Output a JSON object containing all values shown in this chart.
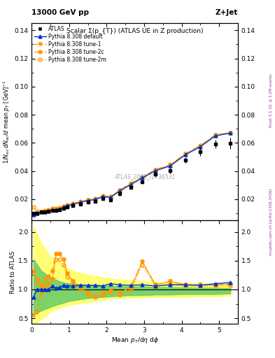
{
  "title_left": "13000 GeV pp",
  "title_right": "Z+Jet",
  "plot_title": "Scalar Σ(p_{T}) (ATLAS UE in Z production)",
  "right_label_top": "Rivet 3.1.10, ≥ 3.2M events",
  "right_label_bot": "mcplots.cern.ch [arXiv:1306.3436]",
  "watermark": "ATLAS_2019_I1736531",
  "ylabel_main": "1/N_{ev} dN_{ev}/d mean p_{T} [GeV]^{-1}",
  "ylabel_ratio": "Ratio to ATLAS",
  "xlabel": "Mean p_{T}/dη dϕ",
  "xlim": [
    0,
    5.5
  ],
  "ylim_main": [
    0.005,
    0.145
  ],
  "ylim_ratio": [
    0.4,
    2.2
  ],
  "x_data": [
    0.05,
    0.15,
    0.25,
    0.35,
    0.45,
    0.55,
    0.65,
    0.75,
    0.85,
    0.95,
    1.1,
    1.3,
    1.5,
    1.7,
    1.9,
    2.1,
    2.35,
    2.65,
    2.95,
    3.3,
    3.7,
    4.1,
    4.5,
    4.9,
    5.3
  ],
  "atlas_y": [
    0.0098,
    0.0098,
    0.0108,
    0.011,
    0.0115,
    0.0118,
    0.0122,
    0.0125,
    0.0135,
    0.0145,
    0.0155,
    0.0165,
    0.0178,
    0.0185,
    0.0205,
    0.0192,
    0.0238,
    0.0285,
    0.0325,
    0.0378,
    0.0405,
    0.0478,
    0.0535,
    0.059,
    0.0598
  ],
  "atlas_yerr": [
    0.0008,
    0.0008,
    0.0008,
    0.0008,
    0.0008,
    0.0008,
    0.0008,
    0.0008,
    0.0009,
    0.0009,
    0.0009,
    0.0009,
    0.001,
    0.001,
    0.001,
    0.001,
    0.0012,
    0.0013,
    0.0015,
    0.0018,
    0.002,
    0.002,
    0.003,
    0.003,
    0.004
  ],
  "pythia_default_y": [
    0.0088,
    0.0098,
    0.0108,
    0.011,
    0.0115,
    0.0125,
    0.0125,
    0.013,
    0.0145,
    0.0153,
    0.0164,
    0.0177,
    0.019,
    0.0198,
    0.0218,
    0.0212,
    0.0258,
    0.0305,
    0.0351,
    0.0402,
    0.0437,
    0.0516,
    0.0573,
    0.065,
    0.067
  ],
  "pythia_tune1_y": [
    0.009,
    0.0098,
    0.011,
    0.0112,
    0.0118,
    0.0128,
    0.0128,
    0.0132,
    0.0147,
    0.0155,
    0.0166,
    0.0178,
    0.0192,
    0.02,
    0.022,
    0.0215,
    0.0262,
    0.0308,
    0.0355,
    0.0406,
    0.0442,
    0.052,
    0.0578,
    0.0655,
    0.0672
  ],
  "pythia_tune2c_y": [
    0.009,
    0.01,
    0.0112,
    0.0118,
    0.0125,
    0.0135,
    0.0135,
    0.0138,
    0.0152,
    0.016,
    0.017,
    0.0182,
    0.0196,
    0.0204,
    0.0225,
    0.0218,
    0.0265,
    0.0313,
    0.0358,
    0.041,
    0.0446,
    0.0523,
    0.0582,
    0.0658,
    0.0672
  ],
  "pythia_tune2m_y": [
    0.0145,
    0.0115,
    0.0108,
    0.0112,
    0.0118,
    0.0128,
    0.013,
    0.0132,
    0.0147,
    0.0155,
    0.0165,
    0.0177,
    0.0192,
    0.02,
    0.022,
    0.0215,
    0.026,
    0.0308,
    0.0353,
    0.0404,
    0.044,
    0.0518,
    0.0578,
    0.0653,
    0.067
  ],
  "ratio_default": [
    0.87,
    1.0,
    1.0,
    1.0,
    1.0,
    1.06,
    1.02,
    1.04,
    1.07,
    1.06,
    1.06,
    1.07,
    1.07,
    1.07,
    1.06,
    1.1,
    1.08,
    1.07,
    1.08,
    1.06,
    1.08,
    1.08,
    1.07,
    1.1,
    1.12
  ],
  "ratio_tune1": [
    0.55,
    0.6,
    0.92,
    1.0,
    1.08,
    1.18,
    1.62,
    1.62,
    1.52,
    1.28,
    1.14,
    1.04,
    0.94,
    0.88,
    0.94,
    0.98,
    0.94,
    1.04,
    1.48,
    1.08,
    1.14,
    1.08,
    1.08,
    1.08,
    1.08
  ],
  "ratio_tune2c": [
    1.32,
    1.18,
    1.08,
    1.18,
    1.23,
    1.33,
    1.62,
    1.62,
    1.52,
    1.28,
    1.14,
    1.04,
    0.94,
    0.88,
    0.94,
    0.98,
    0.94,
    1.04,
    1.48,
    1.08,
    1.14,
    1.08,
    1.08,
    1.08,
    1.1
  ],
  "ratio_tune2m": [
    1.32,
    1.12,
    1.02,
    1.08,
    1.1,
    1.18,
    1.52,
    1.52,
    1.42,
    1.22,
    1.08,
    1.0,
    0.9,
    0.86,
    0.9,
    0.96,
    0.9,
    1.0,
    1.42,
    1.05,
    1.1,
    1.05,
    1.06,
    1.06,
    1.06
  ],
  "yellow_band_upper": [
    2.1,
    1.95,
    1.82,
    1.72,
    1.62,
    1.56,
    1.52,
    1.47,
    1.42,
    1.37,
    1.32,
    1.29,
    1.26,
    1.23,
    1.21,
    1.19,
    1.17,
    1.16,
    1.15,
    1.13,
    1.12,
    1.11,
    1.1,
    1.1,
    1.09
  ],
  "yellow_band_lower": [
    0.38,
    0.43,
    0.48,
    0.52,
    0.58,
    0.63,
    0.66,
    0.68,
    0.7,
    0.72,
    0.74,
    0.76,
    0.78,
    0.8,
    0.82,
    0.84,
    0.85,
    0.86,
    0.86,
    0.87,
    0.87,
    0.87,
    0.88,
    0.88,
    0.89
  ],
  "green_band_upper": [
    1.52,
    1.43,
    1.33,
    1.28,
    1.23,
    1.19,
    1.17,
    1.14,
    1.12,
    1.11,
    1.1,
    1.09,
    1.08,
    1.08,
    1.07,
    1.06,
    1.06,
    1.05,
    1.05,
    1.04,
    1.04,
    1.03,
    1.03,
    1.03,
    1.02
  ],
  "green_band_lower": [
    0.58,
    0.6,
    0.63,
    0.66,
    0.68,
    0.71,
    0.73,
    0.75,
    0.77,
    0.79,
    0.81,
    0.83,
    0.85,
    0.86,
    0.87,
    0.88,
    0.89,
    0.9,
    0.9,
    0.91,
    0.91,
    0.92,
    0.92,
    0.92,
    0.93
  ],
  "color_blue": "#0033cc",
  "color_orange": "#ff9900",
  "color_yellow_band": "#ffff66",
  "color_green_band": "#66cc66",
  "color_atlas_marker": "#000000",
  "color_watermark": "#aaaaaa",
  "color_right_label": "#993399",
  "yticks_main": [
    0.02,
    0.04,
    0.06,
    0.08,
    0.1,
    0.12,
    0.14
  ],
  "yticks_ratio": [
    0.5,
    1.0,
    1.5,
    2.0
  ]
}
